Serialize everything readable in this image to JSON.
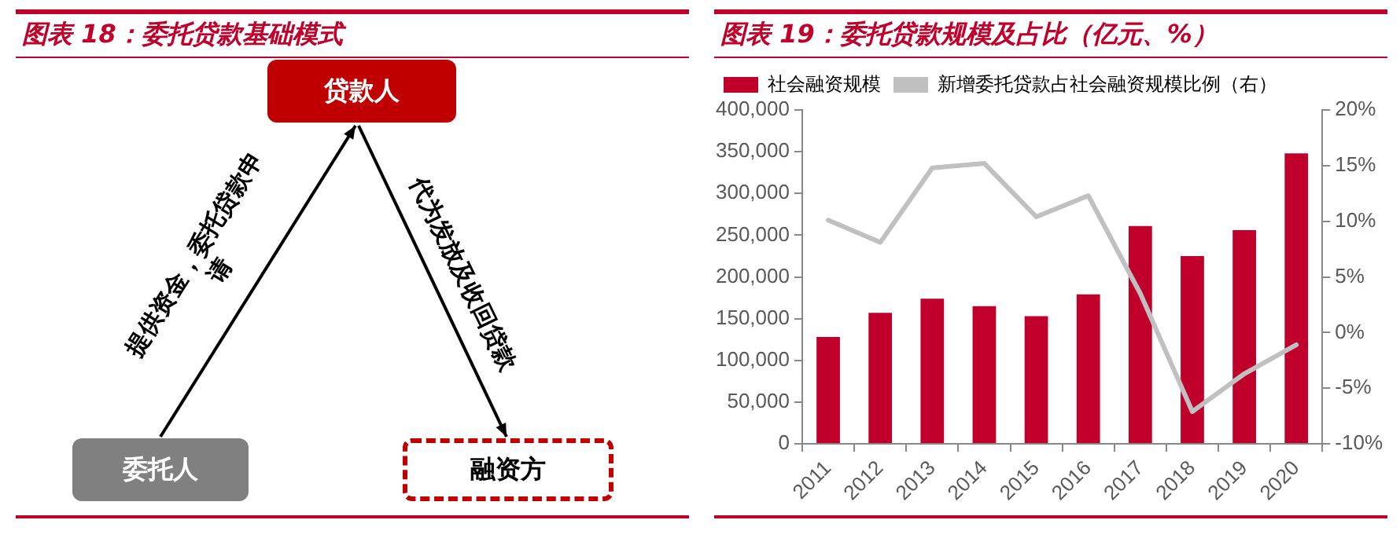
{
  "chart_data": [
    {
      "type": "other",
      "title": "图表 18：委托贷款基础模式",
      "annotations": [
        "贷款人",
        "委托人",
        "融资方",
        "提供资金，委托贷款申请",
        "代为发放及收回贷款"
      ]
    },
    {
      "type": "bar",
      "title": "图表 19：委托贷款规模及占比（亿元、%）",
      "categories": [
        "2011",
        "2012",
        "2013",
        "2014",
        "2015",
        "2016",
        "2017",
        "2018",
        "2019",
        "2020"
      ],
      "series": [
        {
          "name": "社会融资规模",
          "type": "bar",
          "color": "#c0002a",
          "values": [
            128000,
            157000,
            174000,
            165000,
            153000,
            179000,
            261000,
            225000,
            256000,
            348000
          ]
        },
        {
          "name": "新增委托贷款占社会融资规模比例（右）",
          "type": "line",
          "axis": "y2",
          "color": "#c0c0c0",
          "values": [
            10.1,
            8.1,
            14.8,
            15.2,
            10.4,
            12.3,
            3.5,
            -7.1,
            -3.7,
            -1.1
          ]
        }
      ],
      "ylim": [
        0,
        400000
      ],
      "yticks": [
        {
          "value": 0,
          "label": "0"
        },
        {
          "value": 50000,
          "label": "50,000"
        },
        {
          "value": 100000,
          "label": "100,000"
        },
        {
          "value": 150000,
          "label": "150,000"
        },
        {
          "value": 200000,
          "label": "200,000"
        },
        {
          "value": 250000,
          "label": "250,000"
        },
        {
          "value": 300000,
          "label": "300,000"
        },
        {
          "value": 350000,
          "label": "350,000"
        },
        {
          "value": 400000,
          "label": "400,000"
        }
      ],
      "y2lim": [
        -10,
        20
      ],
      "y2ticks": [
        {
          "value": -10,
          "label": "-10%"
        },
        {
          "value": -5,
          "label": "-5%"
        },
        {
          "value": 0,
          "label": "0%"
        },
        {
          "value": 5,
          "label": "5%"
        },
        {
          "value": 10,
          "label": "10%"
        },
        {
          "value": 15,
          "label": "15%"
        },
        {
          "value": 20,
          "label": "20%"
        }
      ],
      "legend": "top left",
      "marker": "none"
    }
  ]
}
